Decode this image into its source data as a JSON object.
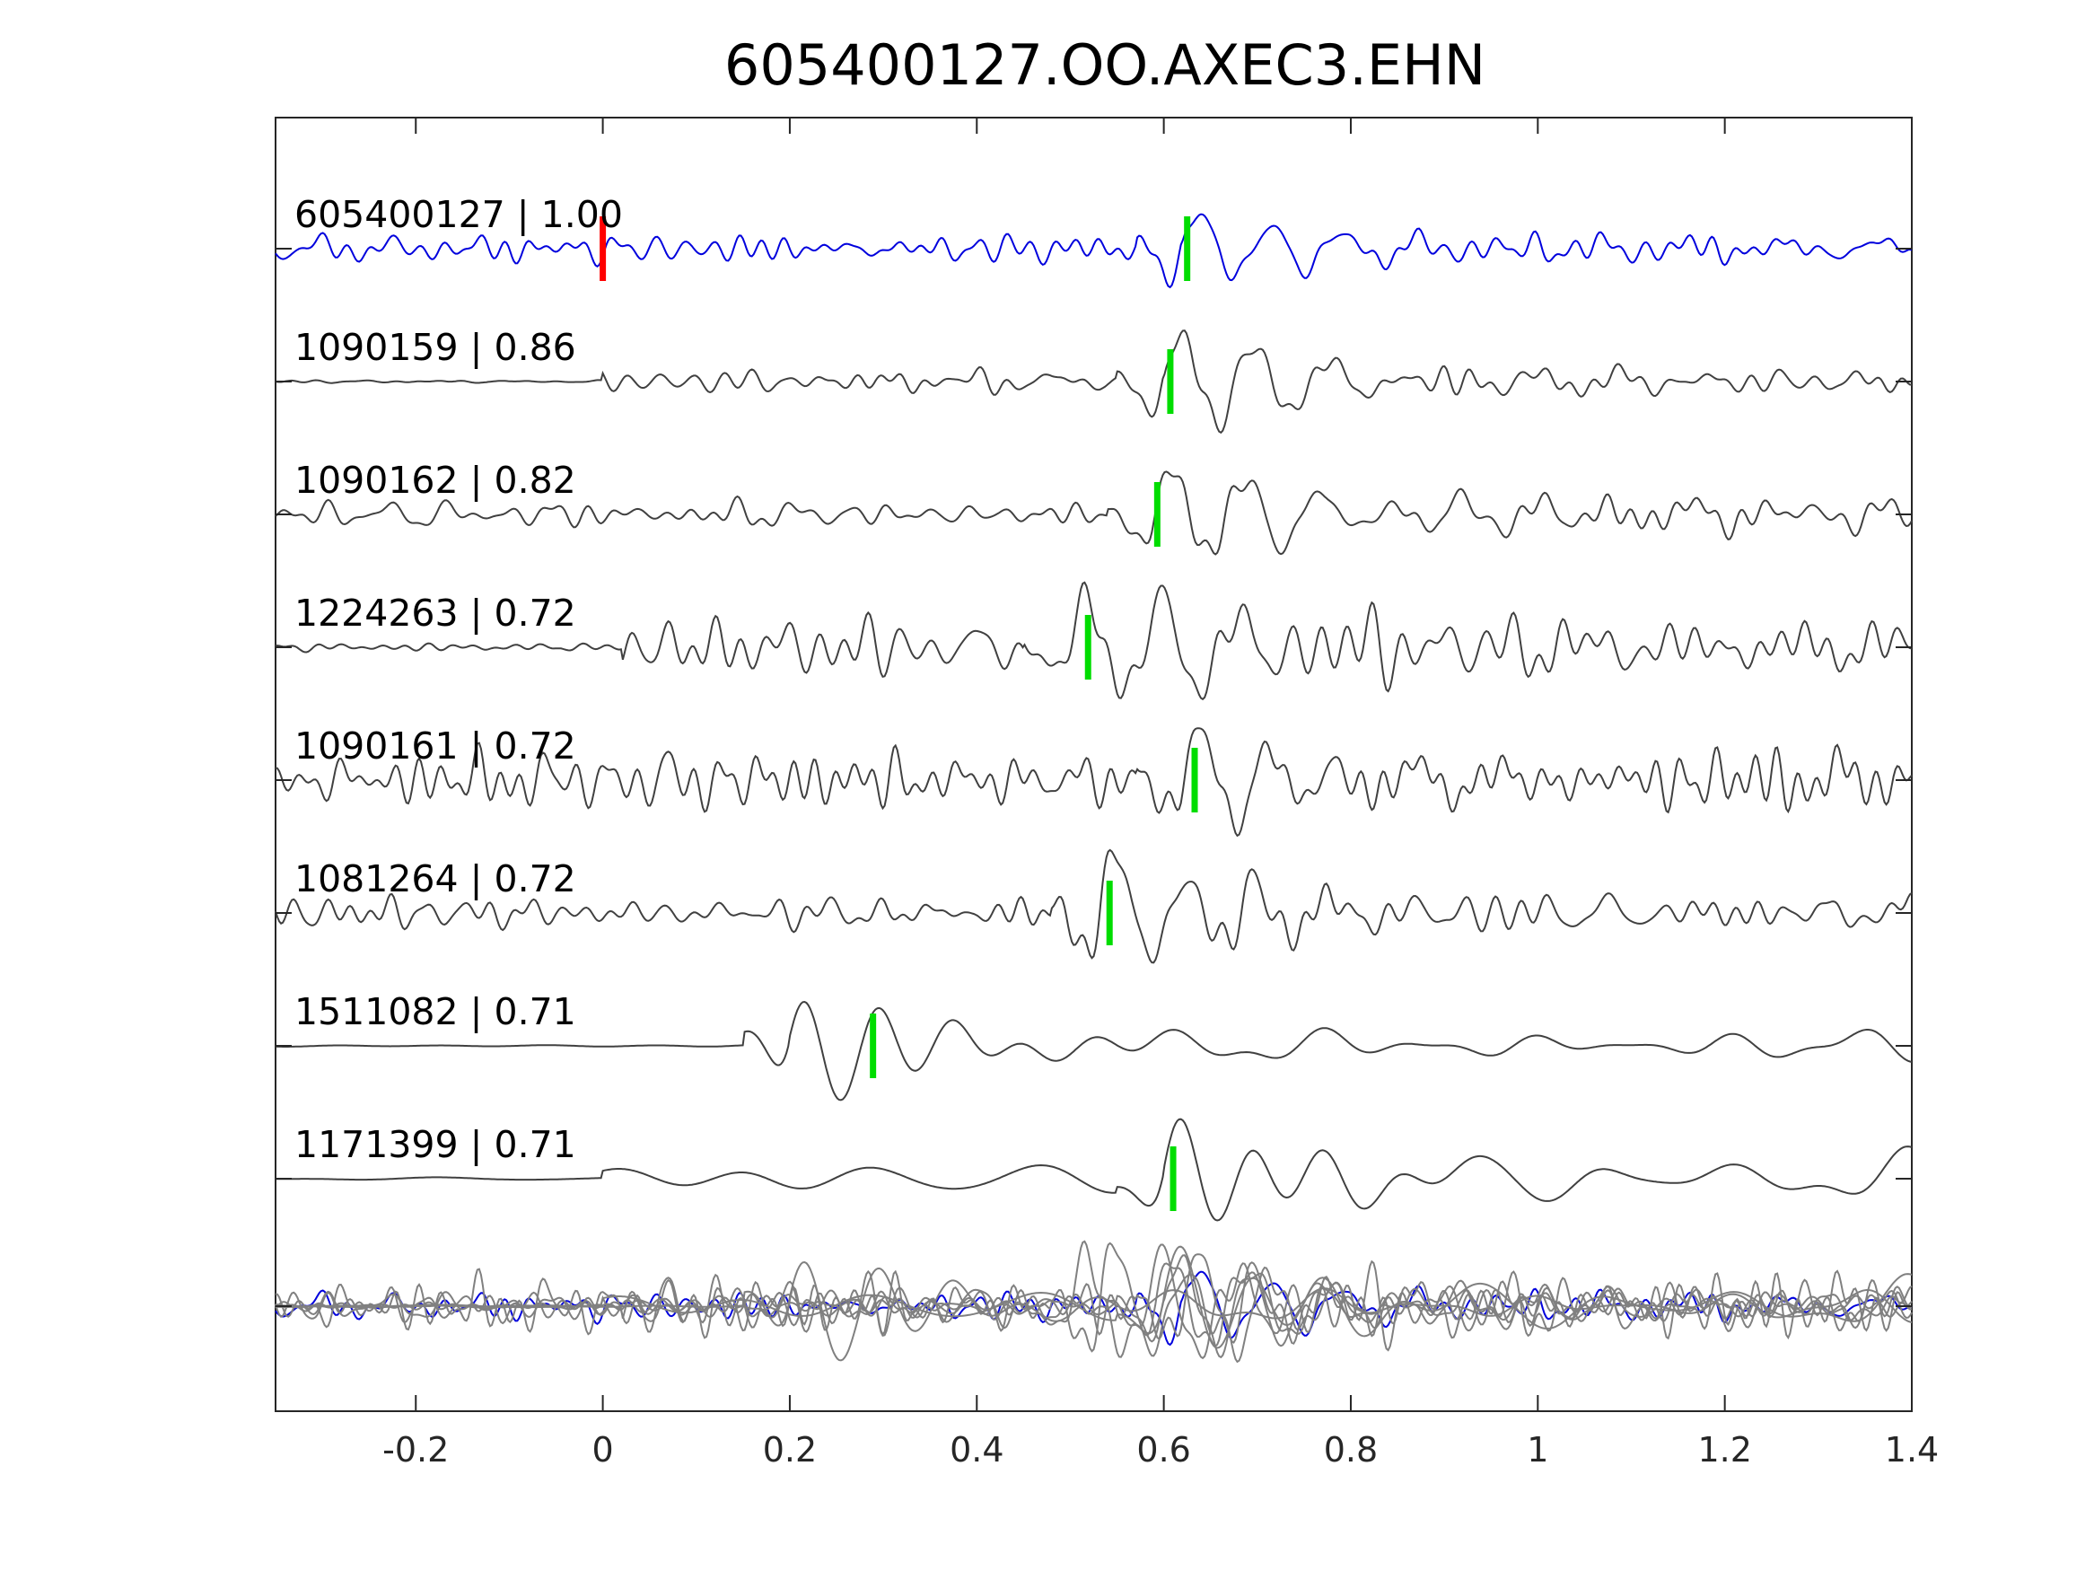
{
  "chart_data": {
    "type": "line",
    "title": "605400127.OO.AXEC3.EHN",
    "xlim": [
      -0.35,
      1.4
    ],
    "xticks": [
      {
        "value": -0.2,
        "label": "-0.2"
      },
      {
        "value": 0,
        "label": "0"
      },
      {
        "value": 0.2,
        "label": "0.2"
      },
      {
        "value": 0.4,
        "label": "0.4"
      },
      {
        "value": 0.6,
        "label": "0.6"
      },
      {
        "value": 0.8,
        "label": "0.8"
      },
      {
        "value": 1,
        "label": "1"
      },
      {
        "value": 1.2,
        "label": "1.2"
      },
      {
        "value": 1.4,
        "label": "1.4"
      }
    ],
    "grid": false,
    "colors": {
      "reference": "#0000dd",
      "trace": "#404040",
      "stack": "#808080",
      "red_pick": "#ff0000",
      "green_pick": "#00dd00",
      "axis": "#262626"
    },
    "traces": [
      {
        "name": "605400127",
        "label": "605400127 | 1.00",
        "correlation": 1.0,
        "pick": 0.625,
        "color": "reference",
        "red_pick": 0.0,
        "amp": 1.0,
        "signal_start": -0.35,
        "noise": 0.28,
        "arrival": 0.62,
        "event_scale": 1.0,
        "seed": 1
      },
      {
        "name": "1090159",
        "label": "1090159 | 0.86",
        "correlation": 0.86,
        "pick": 0.607,
        "color": "trace",
        "amp": 1.0,
        "signal_start": 0.0,
        "noise": 0.22,
        "arrival": 0.6,
        "event_scale": 1.1,
        "seed": 2
      },
      {
        "name": "1090162",
        "label": "1090162 | 0.82",
        "correlation": 0.82,
        "pick": 0.593,
        "color": "trace",
        "amp": 1.0,
        "signal_start": -0.35,
        "noise": 0.24,
        "arrival": 0.59,
        "event_scale": 1.1,
        "seed": 3
      },
      {
        "name": "1224263",
        "label": "1224263 | 0.72",
        "correlation": 0.72,
        "pick": 0.519,
        "color": "trace",
        "amp": 1.0,
        "signal_start": 0.02,
        "noise": 0.55,
        "arrival": 0.5,
        "event_scale": 1.1,
        "seed": 4
      },
      {
        "name": "1090161",
        "label": "1090161 | 0.72",
        "correlation": 0.72,
        "pick": 0.633,
        "color": "trace",
        "amp": 1.0,
        "signal_start": -0.35,
        "noise": 0.45,
        "arrival": 0.62,
        "event_scale": 1.1,
        "seed": 5
      },
      {
        "name": "1081264",
        "label": "1081264 | 0.72",
        "correlation": 0.72,
        "pick": 0.542,
        "color": "trace",
        "amp": 1.0,
        "signal_start": -0.35,
        "noise": 0.35,
        "arrival": 0.53,
        "event_scale": 1.2,
        "seed": 6
      },
      {
        "name": "1511082",
        "label": "1511082 | 0.71",
        "correlation": 0.71,
        "pick": 0.289,
        "color": "trace",
        "amp": 1.0,
        "signal_start": 0.15,
        "noise": 0.0,
        "arrival": 0.2,
        "event_scale": 1.2,
        "smooth": true,
        "seed": 7
      },
      {
        "name": "1171399",
        "label": "1171399 | 0.71",
        "correlation": 0.71,
        "pick": 0.61,
        "color": "trace",
        "amp": 1.0,
        "signal_start": 0.0,
        "noise": 0.0,
        "arrival": 0.6,
        "event_scale": 1.0,
        "smooth": true,
        "seed": 8
      }
    ]
  }
}
